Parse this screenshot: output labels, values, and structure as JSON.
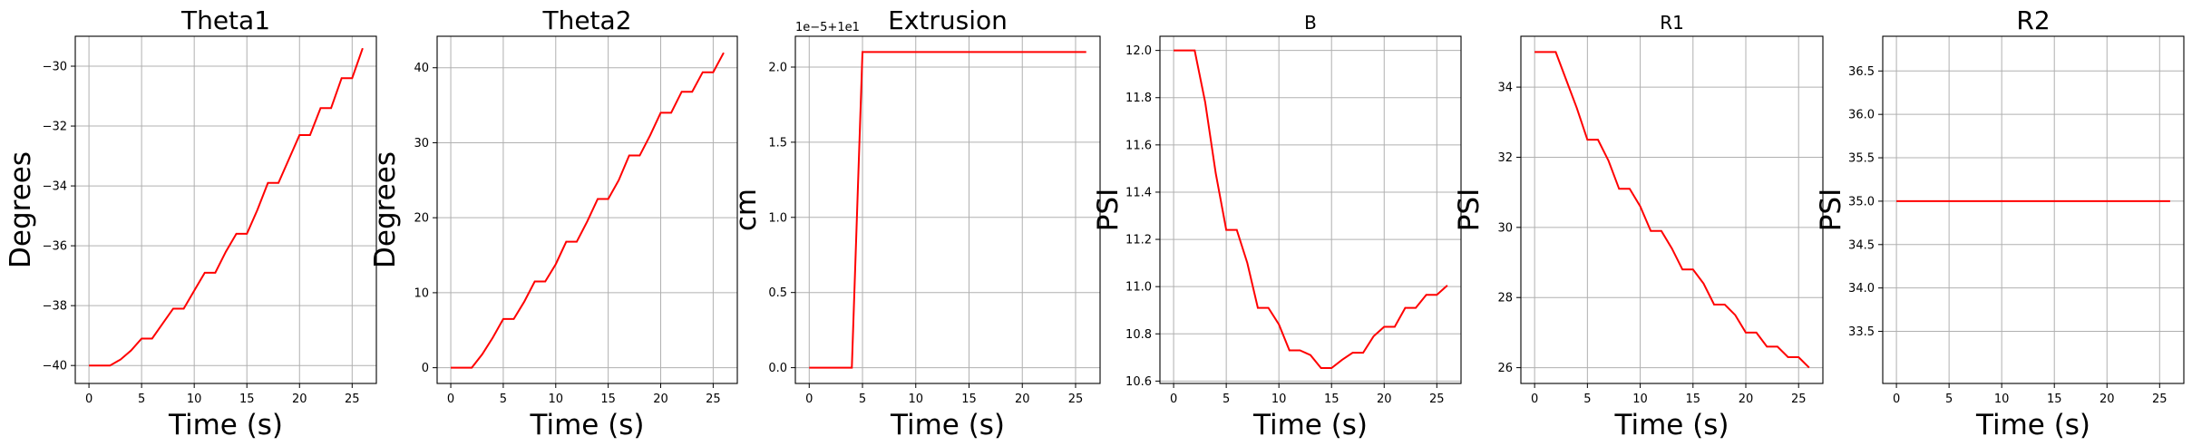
{
  "chart_data": [
    {
      "type": "line",
      "title": "Theta1",
      "xlabel": "Time (s)",
      "ylabel": "Degrees",
      "xlim": [
        -1.3,
        27.3
      ],
      "ylim": [
        -40.6,
        -29.0
      ],
      "xticks": [
        0,
        5,
        10,
        15,
        20,
        25
      ],
      "yticks": [
        -40,
        -38,
        -36,
        -34,
        -32,
        -30
      ],
      "ytick_labels": [
        "−40",
        "−38",
        "−36",
        "−34",
        "−32",
        "−30"
      ],
      "grid": true,
      "series": [
        {
          "color": "#ff0000",
          "x": [
            0,
            1,
            2,
            3,
            4,
            5,
            6,
            7,
            8,
            9,
            10,
            11,
            12,
            13,
            14,
            15,
            16,
            17,
            18,
            19,
            20,
            21,
            22,
            23,
            24,
            25,
            26
          ],
          "y": [
            -40.0,
            -40.0,
            -40.0,
            -39.8,
            -39.5,
            -39.1,
            -39.1,
            -38.6,
            -38.1,
            -38.1,
            -37.5,
            -36.9,
            -36.9,
            -36.2,
            -35.6,
            -35.6,
            -34.8,
            -33.9,
            -33.9,
            -33.1,
            -32.3,
            -32.3,
            -31.4,
            -31.4,
            -30.4,
            -30.4,
            -29.4
          ]
        }
      ]
    },
    {
      "type": "line",
      "title": "Theta2",
      "xlabel": "Time (s)",
      "ylabel": "Degrees",
      "xlim": [
        -1.3,
        27.3
      ],
      "ylim": [
        -2.1,
        44.2
      ],
      "xticks": [
        0,
        5,
        10,
        15,
        20,
        25
      ],
      "yticks": [
        0,
        10,
        20,
        30,
        40
      ],
      "ytick_labels": [
        "0",
        "10",
        "20",
        "30",
        "40"
      ],
      "grid": true,
      "series": [
        {
          "color": "#ff0000",
          "x": [
            0,
            1,
            2,
            3,
            4,
            5,
            6,
            7,
            8,
            9,
            10,
            11,
            12,
            13,
            14,
            15,
            16,
            17,
            18,
            19,
            20,
            21,
            22,
            23,
            24,
            25,
            26
          ],
          "y": [
            0,
            0,
            0,
            1.8,
            4.0,
            6.5,
            6.5,
            8.8,
            11.5,
            11.5,
            13.8,
            16.8,
            16.8,
            19.5,
            22.5,
            22.5,
            25.0,
            28.3,
            28.3,
            31.0,
            34.0,
            34.0,
            36.8,
            36.8,
            39.4,
            39.4,
            42.0
          ]
        }
      ]
    },
    {
      "type": "line",
      "title": "Extrusion",
      "xlabel": "Time (s)",
      "ylabel": "cm",
      "offset_text": "1e−5+1e1",
      "xlim": [
        -1.3,
        27.3
      ],
      "ylim": [
        -0.105,
        2.205
      ],
      "xticks": [
        0,
        5,
        10,
        15,
        20,
        25
      ],
      "yticks": [
        0.0,
        0.5,
        1.0,
        1.5,
        2.0
      ],
      "ytick_labels": [
        "0.0",
        "0.5",
        "1.0",
        "1.5",
        "2.0"
      ],
      "grid": true,
      "series": [
        {
          "color": "#ff0000",
          "x": [
            0,
            1,
            2,
            3,
            4,
            5,
            6,
            7,
            8,
            9,
            10,
            11,
            12,
            13,
            14,
            15,
            16,
            17,
            18,
            19,
            20,
            21,
            22,
            23,
            24,
            25,
            26
          ],
          "y": [
            0,
            0,
            0,
            0,
            0,
            2.1,
            2.1,
            2.1,
            2.1,
            2.1,
            2.1,
            2.1,
            2.1,
            2.1,
            2.1,
            2.1,
            2.1,
            2.1,
            2.1,
            2.1,
            2.1,
            2.1,
            2.1,
            2.1,
            2.1,
            2.1,
            2.1
          ]
        }
      ]
    },
    {
      "type": "line",
      "title": "B",
      "xlabel": "Time (s)",
      "ylabel": "PSI",
      "xlim": [
        -1.3,
        27.3
      ],
      "ylim": [
        10.59,
        12.06
      ],
      "xticks": [
        0,
        5,
        10,
        15,
        20,
        25
      ],
      "yticks": [
        10.6,
        10.8,
        11.0,
        11.2,
        11.4,
        11.6,
        11.8,
        12.0
      ],
      "ytick_labels": [
        "10.6",
        "10.8",
        "11.0",
        "11.2",
        "11.4",
        "11.6",
        "11.8",
        "12.0"
      ],
      "grid": true,
      "series": [
        {
          "color": "#ff0000",
          "x": [
            0,
            1,
            2,
            3,
            4,
            5,
            6,
            7,
            8,
            9,
            10,
            11,
            12,
            13,
            14,
            15,
            16,
            17,
            18,
            19,
            20,
            21,
            22,
            23,
            24,
            25,
            26
          ],
          "y": [
            12.0,
            12.0,
            12.0,
            11.78,
            11.48,
            11.24,
            11.24,
            11.1,
            10.91,
            10.91,
            10.84,
            10.73,
            10.73,
            10.71,
            10.655,
            10.655,
            10.69,
            10.72,
            10.72,
            10.79,
            10.83,
            10.83,
            10.91,
            10.91,
            10.965,
            10.965,
            11.005
          ]
        }
      ]
    },
    {
      "type": "line",
      "title": "R1",
      "xlabel": "Time (s)",
      "ylabel": "PSI",
      "xlim": [
        -1.3,
        27.3
      ],
      "ylim": [
        25.55,
        35.45
      ],
      "xticks": [
        0,
        5,
        10,
        15,
        20,
        25
      ],
      "yticks": [
        26,
        28,
        30,
        32,
        34
      ],
      "ytick_labels": [
        "26",
        "28",
        "30",
        "32",
        "34"
      ],
      "grid": true,
      "series": [
        {
          "color": "#ff0000",
          "x": [
            0,
            1,
            2,
            3,
            4,
            5,
            6,
            7,
            8,
            9,
            10,
            11,
            12,
            13,
            14,
            15,
            16,
            17,
            18,
            19,
            20,
            21,
            22,
            23,
            24,
            25,
            26
          ],
          "y": [
            35.0,
            35.0,
            35.0,
            34.2,
            33.4,
            32.5,
            32.5,
            31.9,
            31.1,
            31.1,
            30.6,
            29.9,
            29.9,
            29.4,
            28.8,
            28.8,
            28.4,
            27.8,
            27.8,
            27.5,
            27.0,
            27.0,
            26.6,
            26.6,
            26.3,
            26.3,
            26.0
          ]
        }
      ]
    },
    {
      "type": "line",
      "title": "R2",
      "xlabel": "Time (s)",
      "ylabel": "PSI",
      "xlim": [
        -1.3,
        27.3
      ],
      "ylim": [
        32.9,
        36.9
      ],
      "xticks": [
        0,
        5,
        10,
        15,
        20,
        25
      ],
      "yticks": [
        33.5,
        34.0,
        34.5,
        35.0,
        35.5,
        36.0,
        36.5
      ],
      "ytick_labels": [
        "33.5",
        "34.0",
        "34.5",
        "35.0",
        "35.5",
        "36.0",
        "36.5"
      ],
      "grid": true,
      "series": [
        {
          "color": "#ff0000",
          "x": [
            0,
            1,
            2,
            3,
            4,
            5,
            6,
            7,
            8,
            9,
            10,
            11,
            12,
            13,
            14,
            15,
            16,
            17,
            18,
            19,
            20,
            21,
            22,
            23,
            24,
            25,
            26
          ],
          "y": [
            35,
            35,
            35,
            35,
            35,
            35,
            35,
            35,
            35,
            35,
            35,
            35,
            35,
            35,
            35,
            35,
            35,
            35,
            35,
            35,
            35,
            35,
            35,
            35,
            35,
            35,
            35
          ]
        }
      ]
    }
  ]
}
